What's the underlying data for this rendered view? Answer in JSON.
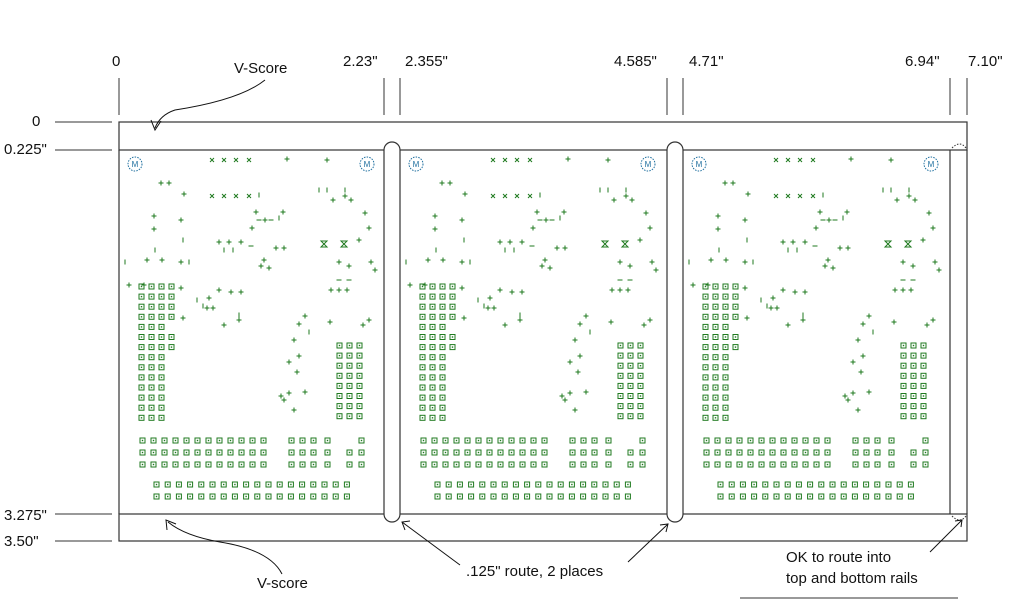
{
  "dimensions": {
    "horizontal": [
      "0",
      "2.23\"",
      "2.355\"",
      "4.585\"",
      "4.71\"",
      "6.94\"",
      "7.10\""
    ],
    "vertical": [
      "0",
      "0.225\"",
      "3.275\"",
      "3.50\""
    ]
  },
  "callouts": {
    "vscore_top": "V-Score",
    "vscore_bottom": "V-score",
    "route": ".125\" route, 2 places",
    "rails_line1": "OK to route into",
    "rails_line2": "top and bottom rails"
  },
  "panels": [
    {
      "fiducial_left": "M",
      "fiducial_right": "M"
    },
    {
      "fiducial_left": "M",
      "fiducial_right": "M"
    },
    {
      "fiducial_left": "M",
      "fiducial_right": "M"
    }
  ],
  "colors": {
    "outline": "#333333",
    "parts": "#1f7a1f"
  }
}
